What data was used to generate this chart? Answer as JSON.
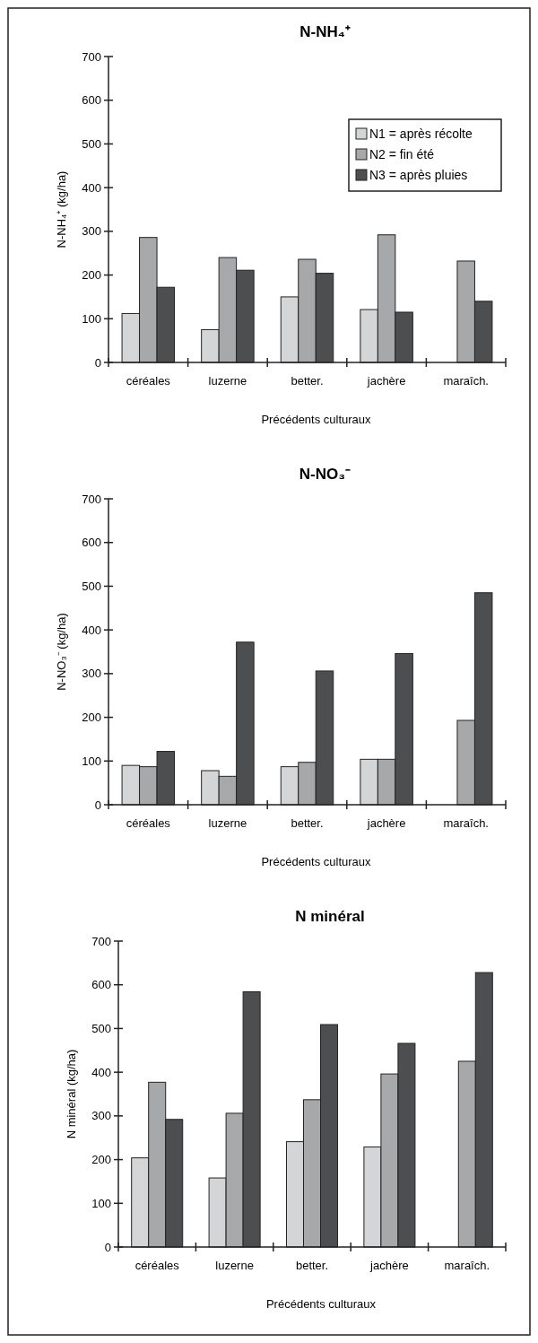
{
  "chart_data": [
    {
      "type": "bar",
      "title": "N-NH₄⁺",
      "xlabel": "Précédents culturaux",
      "ylabel": "N-NH₄⁺ (kg/ha)",
      "categories": [
        "céréales",
        "luzerne",
        "better.",
        "jachère",
        "maraîch."
      ],
      "ylim": [
        0,
        700
      ],
      "yticks": [
        0,
        100,
        200,
        300,
        400,
        500,
        600,
        700
      ],
      "legend": "top right",
      "series": [
        {
          "name": "N1 = après récolte",
          "color": "#d4d5d6",
          "values": [
            112,
            75,
            150,
            121,
            null
          ]
        },
        {
          "name": "N2 = fin été",
          "color": "#a7a8aa",
          "values": [
            286,
            240,
            236,
            292,
            232
          ]
        },
        {
          "name": "N3 = après pluies",
          "color": "#4d4e50",
          "values": [
            172,
            211,
            204,
            115,
            140
          ]
        }
      ]
    },
    {
      "type": "bar",
      "title": "N-NO₃⁻",
      "xlabel": "Précédents culturaux",
      "ylabel": "N-NO₃⁻ (kg/ha)",
      "categories": [
        "céréales",
        "luzerne",
        "better.",
        "jachère",
        "maraîch."
      ],
      "ylim": [
        0,
        700
      ],
      "yticks": [
        0,
        100,
        200,
        300,
        400,
        500,
        600,
        700
      ],
      "series": [
        {
          "color": "#d4d5d6",
          "values": [
            90,
            78,
            87,
            104,
            null
          ]
        },
        {
          "color": "#a7a8aa",
          "values": [
            87,
            65,
            97,
            104,
            193
          ]
        },
        {
          "color": "#4d4e50",
          "values": [
            122,
            372,
            306,
            346,
            485
          ]
        }
      ]
    },
    {
      "type": "bar",
      "title": "N minéral",
      "xlabel": "Précédents culturaux",
      "ylabel": "N minéral (kg/ha)",
      "categories": [
        "céréales",
        "luzerne",
        "better.",
        "jachère",
        "maraîch."
      ],
      "ylim": [
        0,
        700
      ],
      "yticks": [
        0,
        100,
        200,
        300,
        400,
        500,
        600,
        700
      ],
      "series": [
        {
          "color": "#d4d5d6",
          "values": [
            204,
            158,
            241,
            229,
            null
          ]
        },
        {
          "color": "#a7a8aa",
          "values": [
            377,
            306,
            337,
            396,
            425
          ]
        },
        {
          "color": "#4d4e50",
          "values": [
            292,
            584,
            509,
            466,
            628
          ]
        }
      ]
    }
  ]
}
